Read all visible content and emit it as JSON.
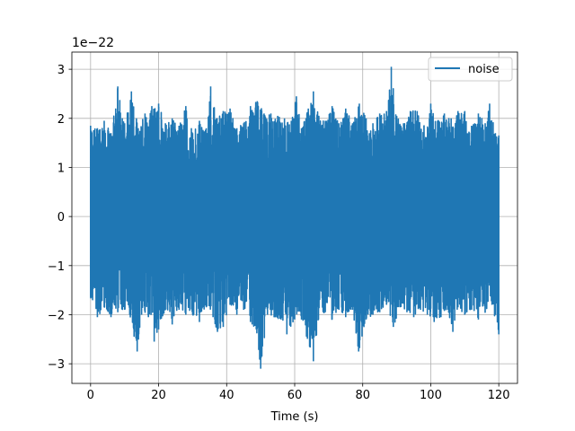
{
  "chart_data": {
    "type": "line",
    "title": "",
    "xlabel": "Time (s)",
    "ylabel": "",
    "offset_label": "1e−22",
    "xlim": [
      -5.5,
      125.5
    ],
    "ylim": [
      -3.4,
      3.35
    ],
    "x_ticks": [
      0,
      20,
      40,
      60,
      80,
      100,
      120
    ],
    "y_ticks": [
      -3,
      -2,
      -1,
      0,
      1,
      2,
      3
    ],
    "x_tick_labels": [
      "0",
      "20",
      "40",
      "60",
      "80",
      "100",
      "120"
    ],
    "y_tick_labels": [
      "−3",
      "−2",
      "−1",
      "0",
      "1",
      "2",
      "3"
    ],
    "grid": true,
    "legend_position": "top-right",
    "series": [
      {
        "name": "noise",
        "color": "#1f77b4",
        "x_range": [
          0,
          120
        ],
        "envelope_upper": [
          [
            0,
            1.85
          ],
          [
            2,
            1.8
          ],
          [
            4,
            1.95
          ],
          [
            6,
            1.7
          ],
          [
            8,
            2.65
          ],
          [
            10,
            1.9
          ],
          [
            12,
            2.55
          ],
          [
            14,
            1.8
          ],
          [
            16,
            2.1
          ],
          [
            18,
            2.25
          ],
          [
            20,
            2.3
          ],
          [
            22,
            1.9
          ],
          [
            24,
            2.0
          ],
          [
            26,
            1.85
          ],
          [
            28,
            2.25
          ],
          [
            30,
            1.7
          ],
          [
            32,
            1.95
          ],
          [
            34,
            1.8
          ],
          [
            35.3,
            2.65
          ],
          [
            37,
            2.0
          ],
          [
            39,
            2.15
          ],
          [
            41,
            2.2
          ],
          [
            43,
            1.8
          ],
          [
            45,
            1.9
          ],
          [
            47,
            2.25
          ],
          [
            49,
            2.35
          ],
          [
            51,
            2.1
          ],
          [
            53,
            2.1
          ],
          [
            55,
            2.05
          ],
          [
            57,
            2.0
          ],
          [
            59,
            1.95
          ],
          [
            60.5,
            2.45
          ],
          [
            62,
            1.8
          ],
          [
            64,
            2.2
          ],
          [
            65.5,
            2.55
          ],
          [
            67,
            2.05
          ],
          [
            69,
            1.95
          ],
          [
            71,
            2.25
          ],
          [
            73,
            1.9
          ],
          [
            75,
            2.2
          ],
          [
            77,
            1.9
          ],
          [
            79,
            2.3
          ],
          [
            81,
            2.0
          ],
          [
            83,
            1.9
          ],
          [
            85,
            2.1
          ],
          [
            87,
            2.15
          ],
          [
            88.4,
            3.05
          ],
          [
            90,
            2.05
          ],
          [
            92,
            1.9
          ],
          [
            94,
            2.15
          ],
          [
            96,
            2.15
          ],
          [
            98,
            1.85
          ],
          [
            100,
            2.3
          ],
          [
            102,
            1.95
          ],
          [
            104,
            2.1
          ],
          [
            106,
            2.0
          ],
          [
            108,
            2.15
          ],
          [
            110,
            2.15
          ],
          [
            112,
            1.85
          ],
          [
            114,
            2.1
          ],
          [
            116,
            1.9
          ],
          [
            117.3,
            2.3
          ],
          [
            119,
            1.7
          ],
          [
            120,
            1.65
          ]
        ],
        "envelope_lower": [
          [
            0,
            -1.65
          ],
          [
            2,
            -2.05
          ],
          [
            4,
            -1.85
          ],
          [
            6,
            -2.05
          ],
          [
            8,
            -1.95
          ],
          [
            10,
            -1.9
          ],
          [
            11.5,
            -2.0
          ],
          [
            13.7,
            -2.75
          ],
          [
            15,
            -2.0
          ],
          [
            17,
            -2.05
          ],
          [
            18.7,
            -2.55
          ],
          [
            20,
            -2.3
          ],
          [
            22,
            -1.9
          ],
          [
            24,
            -2.2
          ],
          [
            26,
            -1.9
          ],
          [
            28,
            -2.0
          ],
          [
            30,
            -2.0
          ],
          [
            32,
            -2.15
          ],
          [
            34,
            -1.85
          ],
          [
            36,
            -2.05
          ],
          [
            37.3,
            -2.35
          ],
          [
            39,
            -2.25
          ],
          [
            41,
            -1.8
          ],
          [
            43,
            -2.0
          ],
          [
            45,
            -1.9
          ],
          [
            47,
            -2.15
          ],
          [
            48.7,
            -2.3
          ],
          [
            50,
            -3.1
          ],
          [
            52,
            -2.0
          ],
          [
            54,
            -2.05
          ],
          [
            56,
            -2.1
          ],
          [
            57.7,
            -2.4
          ],
          [
            60,
            -2.1
          ],
          [
            62,
            -2.1
          ],
          [
            63.5,
            -2.45
          ],
          [
            65.5,
            -2.95
          ],
          [
            67,
            -2.1
          ],
          [
            69,
            -1.95
          ],
          [
            71,
            -2.1
          ],
          [
            73,
            -1.9
          ],
          [
            75,
            -2.05
          ],
          [
            77,
            -1.9
          ],
          [
            78.8,
            -2.75
          ],
          [
            81,
            -2.1
          ],
          [
            83,
            -2.0
          ],
          [
            85,
            -1.95
          ],
          [
            87,
            -1.8
          ],
          [
            89,
            -2.25
          ],
          [
            91,
            -1.85
          ],
          [
            93,
            -1.95
          ],
          [
            95,
            -2.05
          ],
          [
            97,
            -1.9
          ],
          [
            99,
            -2.0
          ],
          [
            101,
            -2.15
          ],
          [
            103,
            -2.05
          ],
          [
            105,
            -1.9
          ],
          [
            106.5,
            -2.35
          ],
          [
            108,
            -1.85
          ],
          [
            110,
            -2.0
          ],
          [
            112,
            -1.9
          ],
          [
            114,
            -2.1
          ],
          [
            116,
            -1.95
          ],
          [
            118,
            -1.8
          ],
          [
            120,
            -2.4
          ]
        ]
      }
    ]
  }
}
